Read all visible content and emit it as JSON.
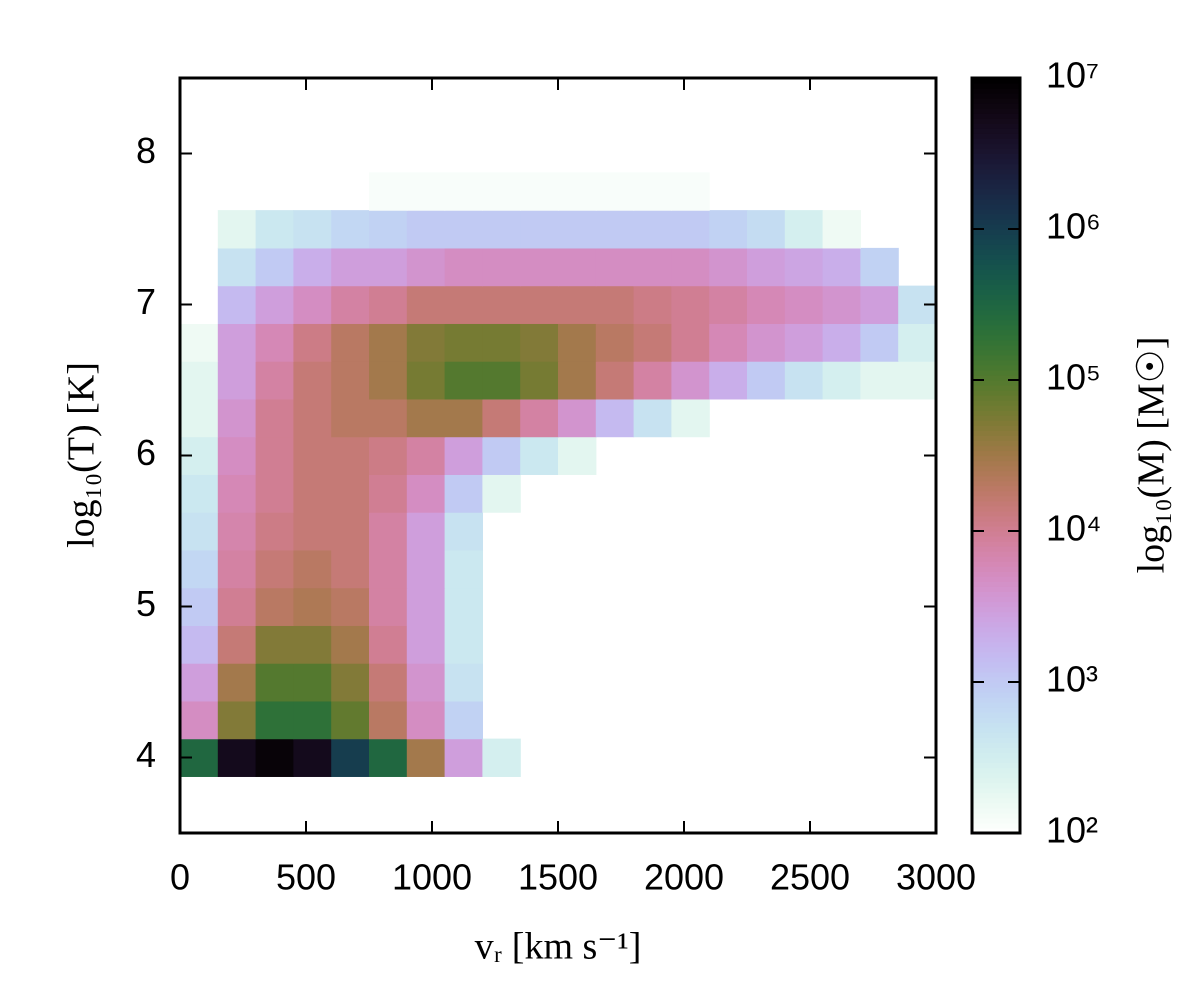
{
  "chart_data": {
    "type": "heatmap2d",
    "x_label": "vᵣ [km s⁻¹]",
    "y_label": "log₁₀(T) [K]",
    "colorbar_label": "log₁₀(M) [M☉]",
    "colormap": "cubehelix_r",
    "zscale": "log",
    "xlim": [
      0,
      3000
    ],
    "ylim": [
      3.5,
      8.5
    ],
    "xticks": [
      0,
      500,
      1000,
      1500,
      2000,
      2500,
      3000
    ],
    "yticks": [
      4,
      5,
      6,
      7,
      8
    ],
    "zlim": [
      100,
      10000000
    ],
    "zticks": [
      {
        "value": 100,
        "label": "10²"
      },
      {
        "value": 1000,
        "label": "10³"
      },
      {
        "value": 10000,
        "label": "10⁴"
      },
      {
        "value": 100000,
        "label": "10⁵"
      },
      {
        "value": 1000000,
        "label": "10⁶"
      },
      {
        "value": 10000000,
        "label": "10⁷"
      }
    ],
    "xbins": [
      0,
      150,
      300,
      450,
      600,
      750,
      900,
      1050,
      1200,
      1350,
      1500,
      1650,
      1800,
      1950,
      2100,
      2250,
      2400,
      2550,
      2700,
      2850,
      3000
    ],
    "ybins": [
      3.875,
      4.125,
      4.375,
      4.625,
      4.875,
      5.125,
      5.375,
      5.625,
      5.875,
      6.125,
      6.375,
      6.625,
      6.875,
      7.125,
      7.375,
      7.625,
      7.875
    ],
    "z": [
      [
        300000.0,
        5000000.0,
        8000000.0,
        5000000.0,
        1000000.0,
        300000.0,
        30000.0,
        3000.0,
        300.0,
        null,
        null,
        null,
        null,
        null,
        null,
        null,
        null,
        null,
        null,
        null
      ],
      [
        5000.0,
        50000.0,
        200000.0,
        200000.0,
        80000.0,
        20000.0,
        5000.0,
        800.0,
        null,
        null,
        null,
        null,
        null,
        null,
        null,
        null,
        null,
        null,
        null,
        null
      ],
      [
        3000.0,
        30000.0,
        100000.0,
        100000.0,
        50000.0,
        15000.0,
        4000.0,
        500.0,
        null,
        null,
        null,
        null,
        null,
        null,
        null,
        null,
        null,
        null,
        null,
        null
      ],
      [
        1500.0,
        15000.0,
        50000.0,
        50000.0,
        30000.0,
        10000.0,
        3000.0,
        400.0,
        null,
        null,
        null,
        null,
        null,
        null,
        null,
        null,
        null,
        null,
        null,
        null
      ],
      [
        1000.0,
        10000.0,
        20000.0,
        25000.0,
        20000.0,
        8000.0,
        3000.0,
        400.0,
        null,
        null,
        null,
        null,
        null,
        null,
        null,
        null,
        null,
        null,
        null,
        null
      ],
      [
        700.0,
        8000.0,
        15000.0,
        20000.0,
        15000.0,
        8000.0,
        3000.0,
        400.0,
        null,
        null,
        null,
        null,
        null,
        null,
        null,
        null,
        null,
        null,
        null,
        null
      ],
      [
        500.0,
        7000.0,
        12000.0,
        15000.0,
        15000.0,
        8000.0,
        3000.0,
        500.0,
        null,
        null,
        null,
        null,
        null,
        null,
        null,
        null,
        null,
        null,
        null,
        null
      ],
      [
        400.0,
        6000.0,
        10000.0,
        15000.0,
        15000.0,
        10000.0,
        5000.0,
        1000.0,
        200.0,
        null,
        null,
        null,
        null,
        null,
        null,
        null,
        null,
        null,
        null,
        null
      ],
      [
        300.0,
        5000.0,
        10000.0,
        15000.0,
        15000.0,
        12000.0,
        8000.0,
        3000.0,
        1000.0,
        400.0,
        200.0,
        null,
        null,
        null,
        null,
        null,
        null,
        null,
        null,
        null
      ],
      [
        200.0,
        4000.0,
        10000.0,
        15000.0,
        20000.0,
        20000.0,
        30000.0,
        30000.0,
        15000.0,
        8000.0,
        4000.0,
        1500.0,
        500.0,
        200.0,
        null,
        null,
        null,
        null,
        null,
        null
      ],
      [
        200.0,
        3000.0,
        8000.0,
        15000.0,
        20000.0,
        30000.0,
        60000.0,
        100000.0,
        100000.0,
        60000.0,
        30000.0,
        15000.0,
        8000.0,
        4000.0,
        2000.0,
        1000.0,
        500.0,
        300.0,
        200.0,
        200.0
      ],
      [
        150.0,
        3000.0,
        6000.0,
        12000.0,
        20000.0,
        30000.0,
        50000.0,
        60000.0,
        60000.0,
        50000.0,
        30000.0,
        20000.0,
        15000.0,
        10000.0,
        6000.0,
        4000.0,
        3000.0,
        2000.0,
        1000.0,
        300.0
      ],
      [
        100.0,
        1500.0,
        3000.0,
        5000.0,
        8000.0,
        10000.0,
        15000.0,
        15000.0,
        15000.0,
        15000.0,
        15000.0,
        15000.0,
        12000.0,
        10000.0,
        8000.0,
        6000.0,
        5000.0,
        4000.0,
        3000.0,
        500.0
      ],
      [
        null,
        500.0,
        1000.0,
        2000.0,
        3000.0,
        3000.0,
        4000.0,
        5000.0,
        5000.0,
        5000.0,
        5000.0,
        5000.0,
        5000.0,
        5000.0,
        4000.0,
        3000.0,
        2500.0,
        2000.0,
        800.0,
        null
      ],
      [
        null,
        200.0,
        400.0,
        500.0,
        700.0,
        800.0,
        1000.0,
        1000.0,
        1000.0,
        1000.0,
        1000.0,
        1000.0,
        1000.0,
        1000.0,
        800.0,
        600.0,
        300.0,
        150.0,
        null,
        null
      ],
      [
        null,
        null,
        null,
        null,
        null,
        120.0,
        120.0,
        120.0,
        120.0,
        120.0,
        120.0,
        120.0,
        120.0,
        120.0,
        null,
        null,
        null,
        null,
        null,
        null
      ]
    ]
  }
}
